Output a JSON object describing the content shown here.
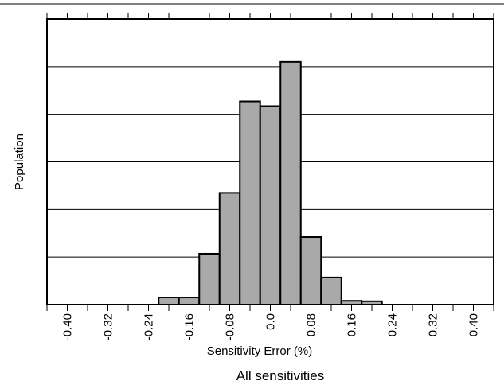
{
  "chart_data": {
    "type": "bar",
    "title": "",
    "caption": "All sensitivities",
    "xlabel": "Sensitivity Error (%)",
    "ylabel": "Population",
    "xlim": [
      -0.44,
      0.44
    ],
    "ylim": [
      0,
      6
    ],
    "bin_width": 0.04,
    "x_ticks": [
      "-0.40",
      "-0.32",
      "-0.24",
      "-0.16",
      "-0.08",
      "0.0",
      "0.08",
      "0.16",
      "0.24",
      "0.32",
      "0.40"
    ],
    "grid": "horizontal",
    "bar_color": "#a9a9a9",
    "bins": [
      {
        "x": -0.2,
        "y": 0.15
      },
      {
        "x": -0.16,
        "y": 0.15
      },
      {
        "x": -0.12,
        "y": 1.07
      },
      {
        "x": -0.08,
        "y": 2.35
      },
      {
        "x": -0.04,
        "y": 4.27
      },
      {
        "x": 0.0,
        "y": 4.17
      },
      {
        "x": 0.04,
        "y": 5.1
      },
      {
        "x": 0.08,
        "y": 1.42
      },
      {
        "x": 0.12,
        "y": 0.57
      },
      {
        "x": 0.16,
        "y": 0.08
      },
      {
        "x": 0.2,
        "y": 0.07
      }
    ]
  }
}
